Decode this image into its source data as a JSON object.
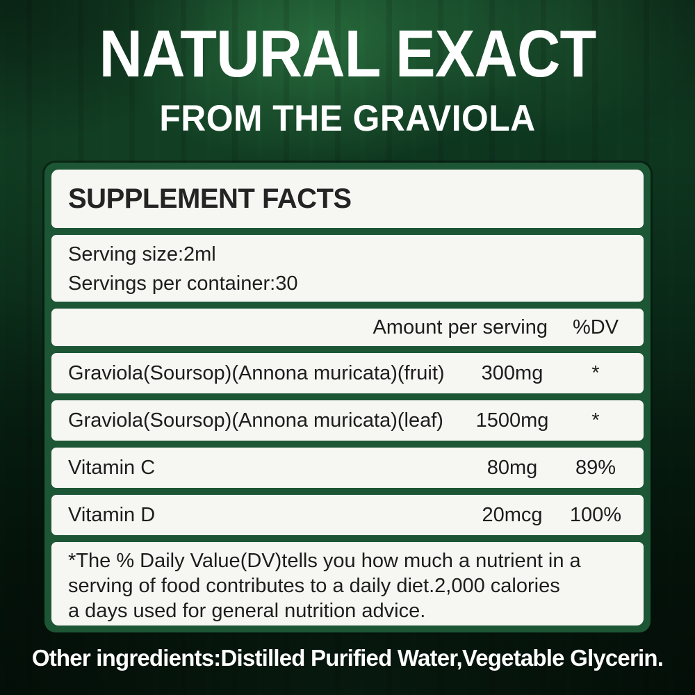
{
  "colors": {
    "panel_green": "#1d5635",
    "panel_bg": "#f6f6f3",
    "background_dark_green": "#0a2a18",
    "text_dark": "#1d1d1d",
    "text_white": "#ffffff"
  },
  "header": {
    "title": "NATURAL EXACT",
    "subtitle": "FROM THE GRAVIOLA"
  },
  "supplement_panel": {
    "heading": "SUPPLEMENT FACTS",
    "serving": {
      "serving_size": "Serving size:2ml",
      "servings_per_container": "Servings per container:30"
    },
    "column_headers": {
      "amount": "Amount per serving",
      "dv": "%DV"
    },
    "rows": [
      {
        "name": "Graviola(Soursop)(Annona muricata)(fruit)",
        "amount": "300mg",
        "dv": "*"
      },
      {
        "name": "Graviola(Soursop)(Annona muricata)(leaf)",
        "amount": "1500mg",
        "dv": "*"
      },
      {
        "name": "Vitamin C",
        "amount": "80mg",
        "dv": "89%"
      },
      {
        "name": "Vitamin D",
        "amount": "20mcg",
        "dv": "100%"
      }
    ],
    "footnote_lines": [
      "*The % Daily Value(DV)tells you how much a nutrient in a",
      "serving of food contributes to a daily diet.2,000 calories",
      "a days used for general nutrition advice."
    ]
  },
  "footer": {
    "other_ingredients": "Other ingredients:Distilled Purified Water,Vegetable Glycerin."
  }
}
